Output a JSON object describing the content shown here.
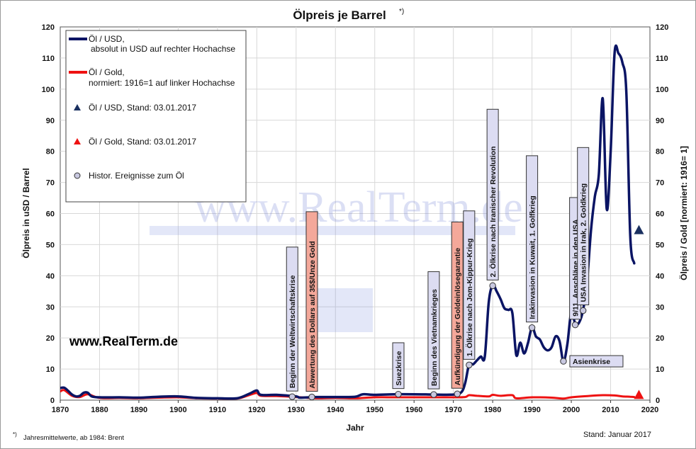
{
  "chart_data": {
    "type": "line",
    "title": "Ölpreis  je Barrel",
    "title_sup": "*)",
    "xlabel": "Jahr",
    "ylabel_left": "Ölpreis  in uSD / Barrel",
    "ylabel_right": "Ölpreis / Gold  [normiert: 1916= 1]",
    "xlim": [
      1870,
      2020
    ],
    "ylim": [
      0,
      120
    ],
    "x_ticks": [
      1870,
      1880,
      1890,
      1900,
      1910,
      1920,
      1930,
      1940,
      1950,
      1960,
      1970,
      1980,
      1990,
      2000,
      2010,
      2020
    ],
    "y_ticks": [
      0,
      10,
      20,
      30,
      40,
      50,
      60,
      70,
      80,
      90,
      100,
      110,
      120
    ],
    "grid": true,
    "legend_position": "top-left",
    "series": [
      {
        "name": "Öl / USD,",
        "name_line2": "absolut in USD  auf rechter Hochachse",
        "color": "#0a1464",
        "x": [
          1870,
          1871,
          1872,
          1873,
          1874,
          1875,
          1876,
          1877,
          1878,
          1880,
          1885,
          1890,
          1895,
          1900,
          1905,
          1910,
          1915,
          1918,
          1920,
          1921,
          1925,
          1930,
          1931,
          1935,
          1940,
          1945,
          1947,
          1950,
          1955,
          1960,
          1965,
          1970,
          1972,
          1973,
          1974,
          1975,
          1976,
          1977,
          1978,
          1979,
          1980,
          1981,
          1982,
          1983,
          1984,
          1985,
          1986,
          1987,
          1988,
          1989,
          1990,
          1991,
          1992,
          1993,
          1994,
          1995,
          1996,
          1997,
          1998,
          1999,
          2000,
          2001,
          2002,
          2003,
          2004,
          2005,
          2006,
          2007,
          2008,
          2009,
          2010,
          2011,
          2012,
          2013,
          2014,
          2015,
          2016
        ],
        "values": [
          3.9,
          4.0,
          3.0,
          1.8,
          1.2,
          1.4,
          2.4,
          2.4,
          1.2,
          0.9,
          0.9,
          0.8,
          1.1,
          1.2,
          0.7,
          0.6,
          0.6,
          2.0,
          3.1,
          1.7,
          1.7,
          1.2,
          0.8,
          1.0,
          1.0,
          1.1,
          1.9,
          1.7,
          1.9,
          1.9,
          1.8,
          1.8,
          2.5,
          5.5,
          11.5,
          11.5,
          12.8,
          14.0,
          14.0,
          31.5,
          37.0,
          35.0,
          32.5,
          29.5,
          29.0,
          28.0,
          14.5,
          18.5,
          15.0,
          18.5,
          23.5,
          20.5,
          19.5,
          17.0,
          16.0,
          17.0,
          20.5,
          19.0,
          12.5,
          18.0,
          28.5,
          24.5,
          25.0,
          29.0,
          38.0,
          54.5,
          65.5,
          72.5,
          97.0,
          61.5,
          79.5,
          111.5,
          111.5,
          108.5,
          99.0,
          52.5,
          44.0
        ]
      },
      {
        "name": "Öl / Gold,",
        "name_line2": "normiert: 1916=1 auf linker Hochachse",
        "color": "#ee1111",
        "x": [
          1870,
          1871,
          1873,
          1875,
          1877,
          1880,
          1885,
          1890,
          1895,
          1900,
          1905,
          1910,
          1915,
          1918,
          1920,
          1921,
          1925,
          1930,
          1935,
          1940,
          1945,
          1950,
          1955,
          1960,
          1965,
          1970,
          1973,
          1974,
          1976,
          1979,
          1980,
          1982,
          1985,
          1986,
          1990,
          1995,
          1998,
          2000,
          2005,
          2008,
          2011,
          2013,
          2015,
          2016
        ],
        "values": [
          2.8,
          3.2,
          1.4,
          1.0,
          1.9,
          0.7,
          0.7,
          0.6,
          0.8,
          0.9,
          0.6,
          0.5,
          0.5,
          1.6,
          2.3,
          1.4,
          1.3,
          1.0,
          0.6,
          0.7,
          0.6,
          0.9,
          0.9,
          0.9,
          0.9,
          0.9,
          1.0,
          1.6,
          1.4,
          1.2,
          1.7,
          1.4,
          1.6,
          0.6,
          0.9,
          0.8,
          0.5,
          0.9,
          1.4,
          1.6,
          1.5,
          1.2,
          1.1,
          1.0
        ]
      }
    ],
    "markers": [
      {
        "name": "Öl / USD, Stand: 03.01.2017",
        "x": 2017.2,
        "y": 54.5,
        "shape": "triangle",
        "color": "#1a3060"
      },
      {
        "name": "Öl / Gold, Stand: 03.01.2017",
        "x": 2017.2,
        "y": 1.5,
        "shape": "triangle",
        "color": "#ee1111"
      }
    ],
    "events_legend": "Histor. Ereignisse zum Öl",
    "events": [
      {
        "label": "Beginn der Weltwirtschaftskrise",
        "year": 1929,
        "value": 1.1,
        "color": "#dcdcf2"
      },
      {
        "label": "Abwertung des Dollars auf 35$/Unze Gold",
        "year": 1934,
        "value": 1.0,
        "color": "#f4a89a"
      },
      {
        "label": "Suezkrise",
        "year": 1956,
        "value": 1.9,
        "color": "#dcdcf2"
      },
      {
        "label": "Beginn des Vietnamkrieges",
        "year": 1965,
        "value": 1.8,
        "color": "#dcdcf2"
      },
      {
        "label": "Aufkündigung der Goldeinlösegarantie",
        "year": 1971,
        "value": 2.0,
        "color": "#f4a89a"
      },
      {
        "label": "1. Ölkrise nach Jom-Kippur-Krieg",
        "year": 1974,
        "value": 11.3,
        "color": "#dcdcf2"
      },
      {
        "label": "2. Ölkrise nach Iranischer Revolution",
        "year": 1980,
        "value": 36.8,
        "color": "#dcdcf2"
      },
      {
        "label": "Irakinvasion in Kuwait, 1. Golfkrieg",
        "year": 1990,
        "value": 23.3,
        "color": "#dcdcf2"
      },
      {
        "label": "Asienkrise",
        "year": 1998,
        "value": 12.5,
        "color": "#dcdcf2"
      },
      {
        "label": "9/11, Anschläge in den USA",
        "year": 2001,
        "value": 24.2,
        "color": "#dcdcf2"
      },
      {
        "label": "USA Invasion in Irak, 2. Goldkrieg",
        "year": 2003,
        "value": 28.8,
        "color": "#dcdcf2"
      }
    ]
  },
  "watermark": "www.RealTerm.de",
  "site_label": "www.RealTerm.de",
  "footnote_mark": "*)",
  "footnote": "Jahresmittelwerte, ab 1984: Brent",
  "stand": "Stand: Januar 2017"
}
